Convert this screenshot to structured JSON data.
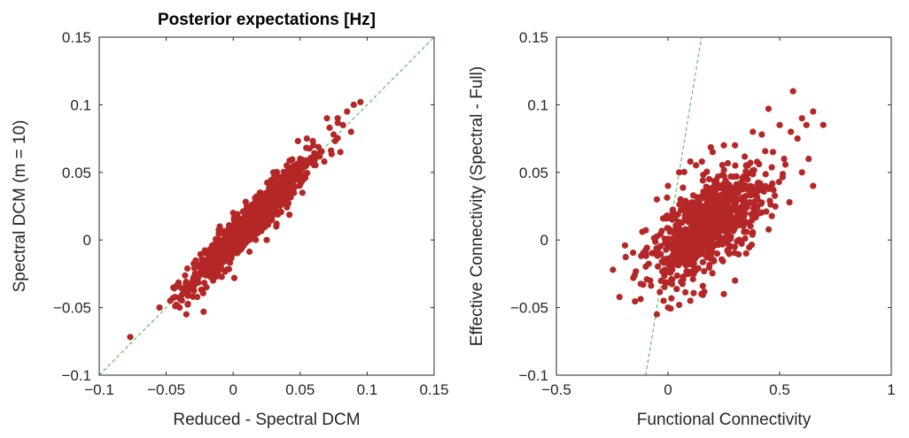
{
  "chart_data": [
    {
      "type": "scatter",
      "title": "Posterior expectations [Hz]",
      "xlabel": "Reduced - Spectral DCM",
      "ylabel": "Spectral DCM (m = 10)",
      "xlim": [
        -0.1,
        0.15
      ],
      "ylim": [
        -0.1,
        0.15
      ],
      "xticks": [
        "−0.1",
        "−0.05",
        "0",
        "0.05",
        "0.1",
        "0.15"
      ],
      "xtick_values": [
        -0.1,
        -0.05,
        0,
        0.05,
        0.1,
        0.15
      ],
      "yticks": [
        "−0.1",
        "−0.05",
        "0",
        "0.05",
        "0.1",
        "0.15"
      ],
      "ytick_values": [
        -0.1,
        -0.05,
        0,
        0.05,
        0.1,
        0.15
      ],
      "identity_line": true,
      "grid": false,
      "point_color": "#B52727",
      "line_color": "#5BBF5B",
      "cluster": {
        "x_mean": 0.012,
        "x_sd": 0.022,
        "slope": 0.98,
        "intercept": 0.0,
        "noise_sd": 0.0075,
        "n": 900
      },
      "points": [
        [
          -0.055,
          -0.05
        ],
        [
          -0.047,
          -0.045
        ],
        [
          -0.04,
          -0.05
        ],
        [
          -0.035,
          -0.055
        ],
        [
          -0.03,
          -0.042
        ],
        [
          -0.038,
          -0.036
        ],
        [
          -0.045,
          -0.043
        ],
        [
          -0.02,
          -0.035
        ],
        [
          -0.028,
          -0.02
        ],
        [
          -0.015,
          -0.03
        ],
        [
          0.09,
          0.1
        ],
        [
          0.085,
          0.095
        ],
        [
          0.095,
          0.102
        ],
        [
          0.078,
          0.09
        ],
        [
          0.07,
          0.09
        ],
        [
          0.082,
          0.085
        ],
        [
          0.088,
          0.08
        ],
        [
          0.075,
          0.078
        ],
        [
          0.072,
          0.083
        ],
        [
          0.06,
          0.07
        ],
        [
          0.065,
          0.065
        ],
        [
          0.055,
          0.075
        ],
        [
          0.05,
          0.06
        ],
        [
          0.08,
          0.065
        ],
        [
          0.068,
          0.058
        ],
        [
          0.03,
          0.05
        ],
        [
          0.04,
          0.055
        ],
        [
          0.045,
          0.04
        ],
        [
          0.035,
          0.03
        ],
        [
          0.05,
          0.045
        ],
        [
          0.02,
          0.035
        ],
        [
          -0.01,
          0.01
        ],
        [
          -0.02,
          -0.01
        ],
        [
          0.0,
          0.02
        ],
        [
          0.025,
          0.0
        ]
      ]
    },
    {
      "type": "scatter",
      "title": "",
      "xlabel": "Functional Connectivity",
      "ylabel": "Effective Connectivity (Spectral - Full)",
      "xlim": [
        -0.5,
        1
      ],
      "ylim": [
        -0.1,
        0.15
      ],
      "xticks": [
        "−0.5",
        "0",
        "0.5",
        "1"
      ],
      "xtick_values": [
        -0.5,
        0,
        0.5,
        1
      ],
      "yticks": [
        "−0.1",
        "−0.05",
        "0",
        "0.05",
        "0.1",
        "0.15"
      ],
      "ytick_values": [
        -0.1,
        -0.05,
        0,
        0.05,
        0.1,
        0.15
      ],
      "identity_line": true,
      "grid": false,
      "point_color": "#B52727",
      "line_color": "#5BBF5B",
      "cluster": {
        "x_mean": 0.17,
        "x_sd": 0.13,
        "slope": 0.1,
        "intercept": -0.007,
        "noise_sd": 0.016,
        "n": 900
      },
      "points": [
        [
          0.56,
          0.11
        ],
        [
          0.45,
          0.097
        ],
        [
          0.6,
          0.09
        ],
        [
          0.65,
          0.095
        ],
        [
          0.62,
          0.085
        ],
        [
          0.5,
          0.085
        ],
        [
          0.55,
          0.08
        ],
        [
          0.58,
          0.075
        ],
        [
          0.38,
          0.08
        ],
        [
          0.42,
          0.078
        ],
        [
          0.63,
          0.06
        ],
        [
          0.6,
          0.05
        ],
        [
          0.65,
          0.04
        ],
        [
          0.47,
          0.065
        ],
        [
          0.52,
          0.06
        ],
        [
          -0.05,
          -0.055
        ],
        [
          -0.02,
          -0.045
        ],
        [
          0.0,
          -0.05
        ],
        [
          0.05,
          -0.048
        ],
        [
          0.1,
          -0.045
        ],
        [
          0.15,
          -0.04
        ],
        [
          -0.08,
          -0.03
        ],
        [
          -0.1,
          -0.01
        ],
        [
          -0.05,
          0.03
        ],
        [
          0.0,
          0.04
        ],
        [
          0.05,
          0.05
        ],
        [
          0.1,
          0.058
        ],
        [
          0.2,
          0.065
        ],
        [
          0.25,
          0.07
        ],
        [
          0.3,
          0.07
        ],
        [
          0.35,
          0.04
        ],
        [
          0.4,
          0.03
        ],
        [
          0.3,
          -0.03
        ],
        [
          0.35,
          -0.01
        ],
        [
          0.25,
          -0.04
        ]
      ]
    }
  ]
}
